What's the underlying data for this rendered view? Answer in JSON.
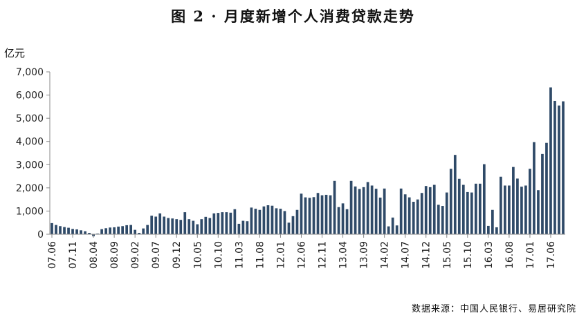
{
  "chart_data": {
    "type": "bar",
    "title": "图 2 · 月度新增个人消费贷款走势",
    "ylabel": "亿元",
    "xlabel": "",
    "ylim": [
      0,
      7000
    ],
    "yticks": [
      "0",
      "1,000",
      "2,000",
      "3,000",
      "4,000",
      "5,000",
      "6,000",
      "7,000"
    ],
    "grid": false,
    "legend": "none",
    "x_tick_labels": [
      "07.06",
      "07.11",
      "08.04",
      "08.09",
      "09.02",
      "09.07",
      "09.12",
      "10.05",
      "10.10",
      "11.03",
      "11.08",
      "12.01",
      "12.06",
      "12.11",
      "13.04",
      "13.09",
      "14.02",
      "14.07",
      "14.12",
      "15.05",
      "15.10",
      "16.03",
      "16.08",
      "17.01",
      "17.06"
    ],
    "bar_color": "#2F4A68",
    "values": [
      480,
      400,
      350,
      310,
      280,
      230,
      210,
      170,
      130,
      60,
      -90,
      30,
      220,
      260,
      290,
      300,
      330,
      350,
      390,
      400,
      190,
      60,
      250,
      400,
      800,
      760,
      900,
      760,
      700,
      680,
      650,
      620,
      950,
      650,
      580,
      430,
      650,
      750,
      700,
      900,
      920,
      950,
      950,
      930,
      1080,
      450,
      580,
      560,
      1150,
      1100,
      1050,
      1200,
      1250,
      1230,
      1120,
      1100,
      1000,
      500,
      780,
      1050,
      1750,
      1590,
      1570,
      1600,
      1780,
      1680,
      1700,
      1680,
      2300,
      1170,
      1330,
      1080,
      2300,
      2060,
      1950,
      2030,
      2250,
      2100,
      1960,
      1580,
      1970,
      340,
      720,
      380,
      1970,
      1720,
      1590,
      1400,
      1500,
      1780,
      2080,
      2030,
      2130,
      1270,
      1220,
      1800,
      2820,
      3420,
      2390,
      2130,
      1820,
      1800,
      2180,
      2180,
      3020,
      360,
      1050,
      300,
      2480,
      2100,
      2100,
      2900,
      2400,
      2050,
      2100,
      2820,
      3970,
      1900,
      3460,
      3940,
      6330,
      5750,
      5550,
      5730
    ]
  },
  "source": "数据来源：中国人民银行、易居研究院"
}
